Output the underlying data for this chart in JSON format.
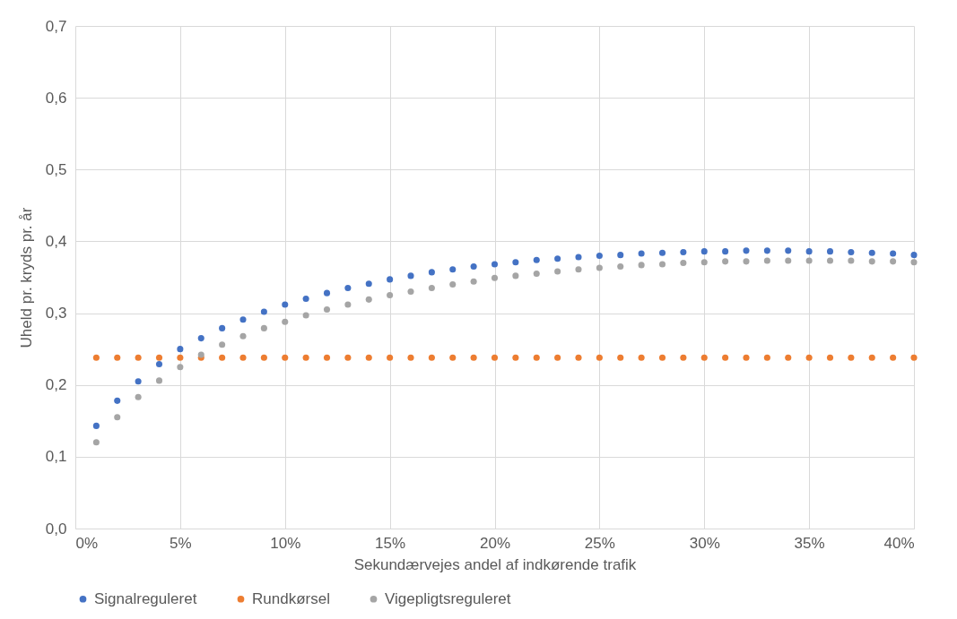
{
  "chart_data": {
    "type": "scatter",
    "xlabel": "Sekundærvejes andel af indkørende trafik",
    "ylabel": "Uheld pr. kryds pr. år",
    "x": [
      1,
      2,
      3,
      4,
      5,
      6,
      7,
      8,
      9,
      10,
      11,
      12,
      13,
      14,
      15,
      16,
      17,
      18,
      19,
      20,
      21,
      22,
      23,
      24,
      25,
      26,
      27,
      28,
      29,
      30,
      31,
      32,
      33,
      34,
      35,
      36,
      37,
      38,
      39,
      40
    ],
    "series": [
      {
        "name": "Signalreguleret",
        "color": "#4472c4",
        "values": [
          0.143,
          0.178,
          0.205,
          0.229,
          0.25,
          0.265,
          0.279,
          0.291,
          0.302,
          0.312,
          0.32,
          0.328,
          0.335,
          0.341,
          0.347,
          0.352,
          0.357,
          0.361,
          0.365,
          0.368,
          0.371,
          0.374,
          0.376,
          0.378,
          0.38,
          0.381,
          0.383,
          0.384,
          0.385,
          0.386,
          0.386,
          0.387,
          0.387,
          0.387,
          0.386,
          0.386,
          0.385,
          0.384,
          0.383,
          0.381
        ]
      },
      {
        "name": "Rundkørsel",
        "color": "#ed7d31",
        "values": [
          0.238,
          0.238,
          0.238,
          0.238,
          0.238,
          0.238,
          0.238,
          0.238,
          0.238,
          0.238,
          0.238,
          0.238,
          0.238,
          0.238,
          0.238,
          0.238,
          0.238,
          0.238,
          0.238,
          0.238,
          0.238,
          0.238,
          0.238,
          0.238,
          0.238,
          0.238,
          0.238,
          0.238,
          0.238,
          0.238,
          0.238,
          0.238,
          0.238,
          0.238,
          0.238,
          0.238,
          0.238,
          0.238,
          0.238,
          0.238
        ]
      },
      {
        "name": "Vigepligtsreguleret",
        "color": "#a5a5a5",
        "values": [
          0.12,
          0.155,
          0.183,
          0.206,
          0.225,
          0.242,
          0.256,
          0.268,
          0.279,
          0.288,
          0.297,
          0.305,
          0.312,
          0.319,
          0.325,
          0.33,
          0.335,
          0.34,
          0.344,
          0.349,
          0.352,
          0.355,
          0.358,
          0.361,
          0.363,
          0.365,
          0.367,
          0.368,
          0.37,
          0.371,
          0.372,
          0.372,
          0.373,
          0.373,
          0.373,
          0.373,
          0.373,
          0.372,
          0.372,
          0.371
        ]
      }
    ],
    "xlim": [
      0,
      40
    ],
    "xticks": [
      {
        "value": 0,
        "label": "0%"
      },
      {
        "value": 5,
        "label": "5%"
      },
      {
        "value": 10,
        "label": "10%"
      },
      {
        "value": 15,
        "label": "15%"
      },
      {
        "value": 20,
        "label": "20%"
      },
      {
        "value": 25,
        "label": "25%"
      },
      {
        "value": 30,
        "label": "30%"
      },
      {
        "value": 35,
        "label": "35%"
      },
      {
        "value": 40,
        "label": "40%"
      }
    ],
    "ylim": [
      0,
      0.7
    ],
    "yticks": [
      {
        "value": 0,
        "label": "0,0"
      },
      {
        "value": 0.1,
        "label": "0,1"
      },
      {
        "value": 0.2,
        "label": "0,2"
      },
      {
        "value": 0.3,
        "label": "0,3"
      },
      {
        "value": 0.4,
        "label": "0,4"
      },
      {
        "value": 0.5,
        "label": "0,5"
      },
      {
        "value": 0.6,
        "label": "0,6"
      },
      {
        "value": 0.7,
        "label": "0,7"
      }
    ],
    "grid": true,
    "legend": "bottom",
    "marker": "circle"
  }
}
